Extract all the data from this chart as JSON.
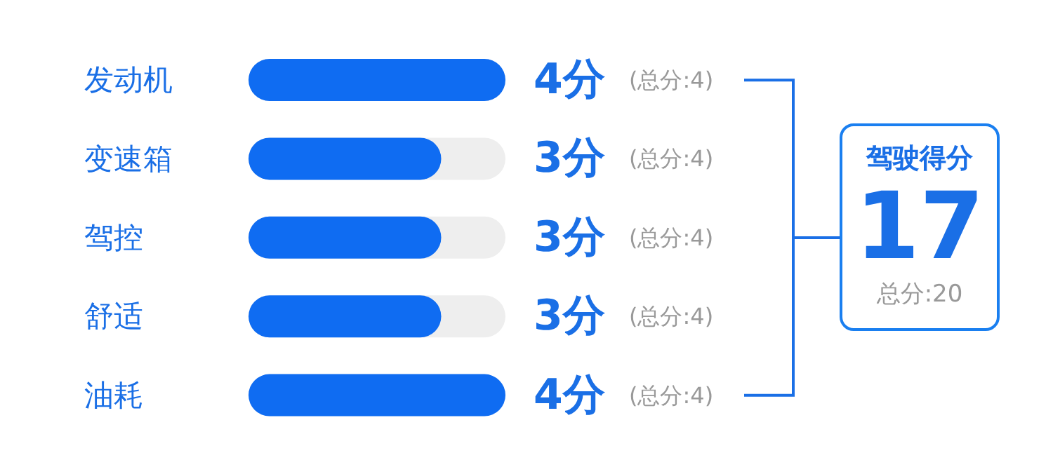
{
  "chart_data": {
    "type": "bar",
    "orientation": "horizontal",
    "categories": [
      "发动机",
      "变速箱",
      "驾控",
      "舒适",
      "油耗"
    ],
    "values": [
      4,
      3,
      3,
      3,
      4
    ],
    "value_labels": [
      "4分",
      "3分",
      "3分",
      "3分",
      "4分"
    ],
    "color": "#0f6cf2",
    "xlim": [
      0,
      4
    ],
    "tick_labels": "y",
    "grid": false,
    "legend": false,
    "annotations": [
      "(总分:4)",
      "(总分:4)",
      "(总分:4)",
      "(总分:4)",
      "(总分:4)",
      "驾驶得分",
      "17",
      "总分:20"
    ]
  }
}
